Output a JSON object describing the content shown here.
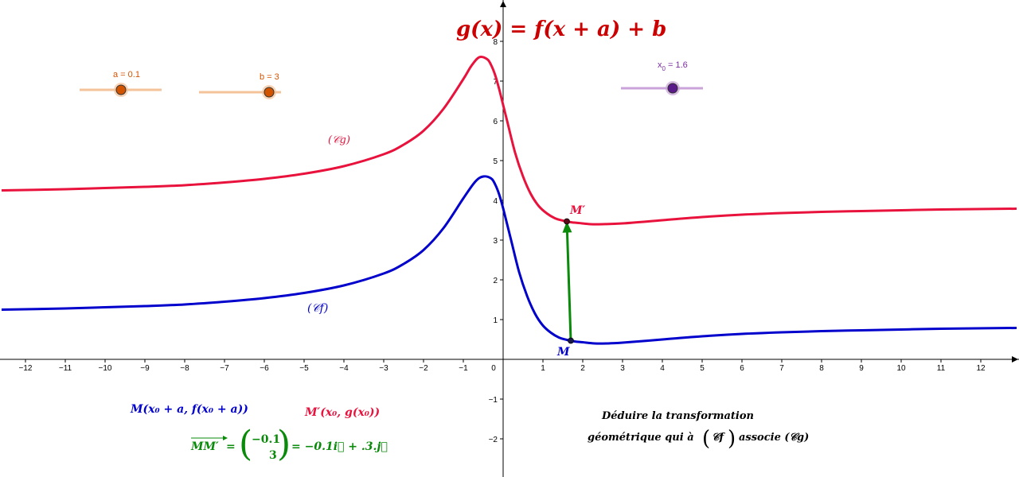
{
  "title": {
    "text": "g(x) = f(x + a) + b",
    "color": "#cc0000"
  },
  "sliders": [
    {
      "id": "a",
      "label": "a = 0.1",
      "value": 0.1,
      "min": -5,
      "max": 5,
      "fraction": 0.5,
      "color": "#d35400",
      "track": "#f5c39a"
    },
    {
      "id": "b",
      "label": "b = 3",
      "value": 3,
      "min": -5,
      "max": 5,
      "fraction": 0.8,
      "color": "#d35400",
      "track": "#f5c39a"
    },
    {
      "id": "x0",
      "label_main": "x",
      "label_sub": "0",
      "label_rest": " = 1.6",
      "value": 1.6,
      "fraction": 0.62,
      "color": "#7a2fa0",
      "track": "#c9a3d9"
    }
  ],
  "axes": {
    "xmin": -12.6,
    "xmax": 12.9,
    "ymin": -2.9,
    "ymax": 9.0,
    "x_ticks": [
      "−12",
      "−11",
      "−10",
      "−9",
      "−8",
      "−7",
      "−6",
      "−5",
      "−4",
      "−3",
      "−2",
      "−1",
      "0",
      "1",
      "2",
      "3",
      "4",
      "5",
      "6",
      "7",
      "8",
      "9",
      "10",
      "11",
      "12"
    ],
    "x_tick_values": [
      -12,
      -11,
      -10,
      -9,
      -8,
      -7,
      -6,
      -5,
      -4,
      -3,
      -2,
      -1,
      0,
      1,
      2,
      3,
      4,
      5,
      6,
      7,
      8,
      9,
      10,
      11,
      12
    ],
    "y_ticks": [
      "−2",
      "−1",
      "1",
      "2",
      "3",
      "4",
      "5",
      "6",
      "7",
      "8"
    ],
    "y_tick_values": [
      -2,
      -1,
      1,
      2,
      3,
      4,
      5,
      6,
      7,
      8
    ]
  },
  "chart_data": {
    "type": "line",
    "series": [
      {
        "name": "𝒞f",
        "color": "#0000cc",
        "x": [
          -12.6,
          -11,
          -10,
          -9,
          -8,
          -7,
          -6,
          -5,
          -4,
          -3,
          -2.5,
          -2,
          -1.5,
          -1,
          -0.7,
          -0.5,
          -0.3,
          -0.2,
          -0.1,
          0,
          0.2,
          0.4,
          0.6,
          0.8,
          1,
          1.2,
          1.4,
          1.6,
          1.8,
          2,
          2.3,
          2.6,
          3,
          4,
          5,
          6,
          7,
          8,
          9,
          10,
          11,
          12.9
        ],
        "y": [
          1.25,
          1.28,
          1.31,
          1.34,
          1.38,
          1.45,
          1.54,
          1.67,
          1.86,
          2.16,
          2.4,
          2.75,
          3.3,
          4.05,
          4.47,
          4.6,
          4.55,
          4.4,
          4.15,
          3.8,
          3.0,
          2.2,
          1.6,
          1.15,
          0.85,
          0.67,
          0.55,
          0.49,
          0.45,
          0.43,
          0.4,
          0.4,
          0.42,
          0.5,
          0.58,
          0.64,
          0.68,
          0.71,
          0.73,
          0.75,
          0.77,
          0.79
        ]
      },
      {
        "name": "𝒞g",
        "color": "#e8123c",
        "x": [
          -12.6,
          -11,
          -10,
          -9,
          -8,
          -7,
          -6,
          -5,
          -4,
          -3,
          -2.5,
          -2,
          -1.5,
          -1,
          -0.8,
          -0.6,
          -0.4,
          -0.3,
          -0.2,
          -0.1,
          0,
          0.1,
          0.3,
          0.5,
          0.7,
          0.9,
          1.1,
          1.3,
          1.5,
          1.7,
          1.9,
          2.2,
          2.5,
          3,
          4,
          5,
          6,
          7,
          8,
          9,
          10,
          11,
          12.9
        ],
        "y": [
          4.25,
          4.28,
          4.31,
          4.34,
          4.38,
          4.45,
          4.54,
          4.67,
          4.86,
          5.16,
          5.4,
          5.75,
          6.3,
          7.05,
          7.38,
          7.6,
          7.55,
          7.4,
          7.15,
          6.8,
          6.4,
          6.0,
          5.2,
          4.6,
          4.15,
          3.85,
          3.67,
          3.55,
          3.49,
          3.45,
          3.43,
          3.4,
          3.4,
          3.42,
          3.5,
          3.58,
          3.64,
          3.68,
          3.71,
          3.73,
          3.75,
          3.77,
          3.79
        ]
      }
    ],
    "points": [
      {
        "name": "M",
        "x": 1.7,
        "y": 0.47,
        "color": "#0000cc"
      },
      {
        "name": "M′",
        "x": 1.6,
        "y": 3.47,
        "color": "#e8123c"
      }
    ],
    "vector": {
      "from": [
        1.7,
        0.47
      ],
      "to": [
        1.6,
        3.47
      ],
      "color": "#0a8a0a"
    }
  },
  "curve_labels": {
    "cg": {
      "text": "(𝒞g)",
      "color": "#e8123c"
    },
    "cf": {
      "text": "(𝒞f)",
      "color": "#0000cc"
    }
  },
  "point_labels": {
    "M": "M",
    "Mprime": "M′"
  },
  "formulas": {
    "M_coords": {
      "text": "M(x₀ + a, f(x₀ + a))",
      "color": "#0000cc"
    },
    "Mprime_coords": {
      "text": "M′(x₀, g(x₀))",
      "color": "#e8123c"
    },
    "vector_name": "MM′",
    "vector_eq_x": "−0.1",
    "vector_eq_y": "3",
    "vector_rhs": "= −0.1i⃗ + .3.j⃗",
    "vector_color": "#0a8a0a"
  },
  "instruction": {
    "line1": "Déduire la transformation",
    "line2_pre": "géométrique qui à",
    "line2_cf": "𝒞f",
    "line2_post": "associe (𝒞g)"
  }
}
